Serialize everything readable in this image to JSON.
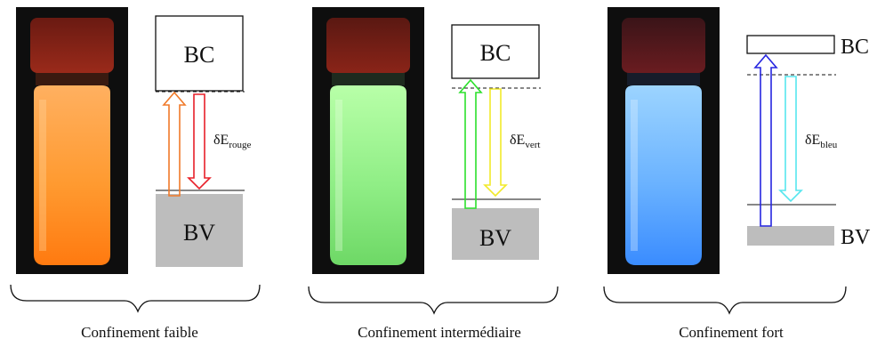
{
  "panels": [
    {
      "key": "faible",
      "caption": "Confinement faible",
      "bc_label": "BC",
      "bv_label": "BV",
      "energy_symbol": "δE",
      "energy_sub": "rouge",
      "colors": {
        "excitation": "#f07a2a",
        "emission": "#e8202a",
        "glow": "#ff8a1e"
      }
    },
    {
      "key": "intermediaire",
      "caption": "Confinement intermédiaire",
      "bc_label": "BC",
      "bv_label": "BV",
      "energy_symbol": "δE",
      "energy_sub": "vert",
      "colors": {
        "excitation": "#2ce02c",
        "emission": "#f2ea2a",
        "glow": "#8ff08c"
      }
    },
    {
      "key": "fort",
      "caption": "Confinement fort",
      "bc_label": "BC",
      "bv_label": "BV",
      "energy_symbol": "δE",
      "energy_sub": "bleu",
      "colors": {
        "excitation": "#2626e0",
        "emission": "#56e6ee",
        "glow": "#6fb0ff"
      }
    }
  ]
}
